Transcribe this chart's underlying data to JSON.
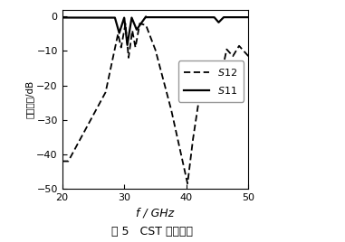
{
  "title": "图 5   CST 仿真结果",
  "xlabel": "f / GHz",
  "ylabel": "插入损耗/dB",
  "xlim": [
    20,
    50
  ],
  "ylim": [
    -50,
    2
  ],
  "yticks": [
    0,
    -10,
    -20,
    -30,
    -40,
    -50
  ],
  "xticks": [
    20,
    30,
    40,
    50
  ],
  "bg_color": "#ffffff",
  "line_color": "#000000"
}
